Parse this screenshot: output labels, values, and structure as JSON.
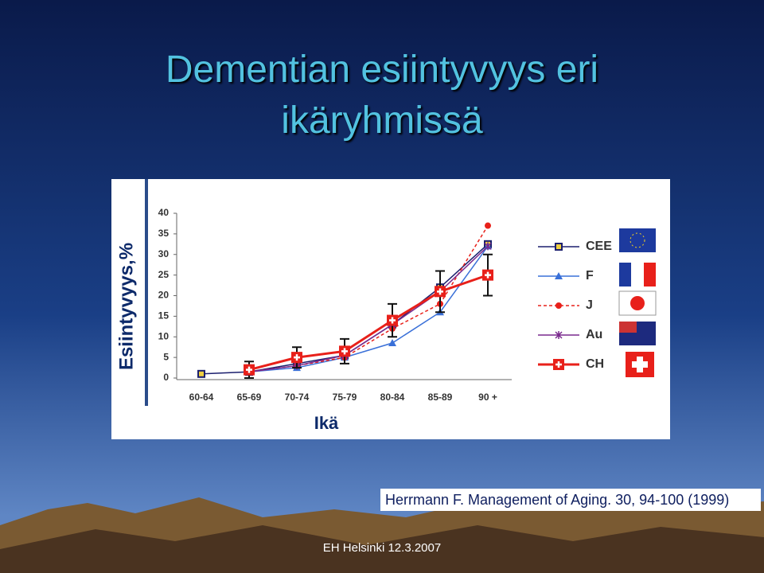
{
  "chart_data": {
    "type": "line",
    "title": "Dementian esiintyvyys eri ikäryhmissä",
    "y_label": "Esiintyvyys,%",
    "x_label": "Ikä",
    "categories": [
      "60-64",
      "65-69",
      "70-74",
      "75-79",
      "80-84",
      "85-89",
      "90 +"
    ],
    "ylim": [
      0,
      40
    ],
    "yticks": [
      0,
      5,
      10,
      15,
      20,
      25,
      30,
      35,
      40
    ],
    "series": [
      {
        "name": "CEE",
        "color": "#1b1f6e",
        "marker": "square",
        "style": "solid",
        "values": [
          1,
          1.5,
          3.5,
          5.5,
          13,
          22,
          32.5
        ]
      },
      {
        "name": "F",
        "color": "#3a70d8",
        "marker": "triangle",
        "style": "solid",
        "values": [
          null,
          1.5,
          2.5,
          5,
          8.5,
          16,
          32
        ]
      },
      {
        "name": "J",
        "color": "#e8201a",
        "marker": "circle",
        "style": "dashed",
        "values": [
          null,
          1.5,
          3,
          5,
          12,
          18,
          37
        ]
      },
      {
        "name": "Au",
        "color": "#7a2a8e",
        "marker": "star",
        "style": "solid",
        "values": [
          null,
          1.5,
          3,
          5.5,
          13,
          21,
          32
        ]
      },
      {
        "name": "CH",
        "color": "#e8201a",
        "marker": "cross",
        "style": "thick",
        "values": [
          null,
          2,
          5,
          6.5,
          14,
          21,
          25
        ],
        "errors": [
          null,
          2,
          2.5,
          3,
          4,
          5,
          5
        ]
      }
    ]
  },
  "slide": {
    "source": "Herrmann F. Management of Aging. 30, 94-100 (1999)",
    "footer": "EH Helsinki 12.3.2007"
  }
}
